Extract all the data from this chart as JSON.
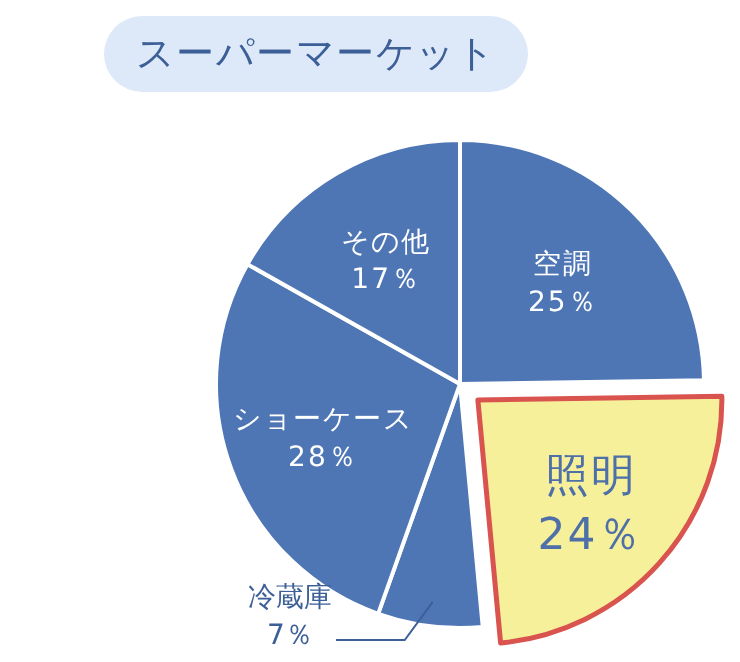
{
  "chart_data": {
    "type": "pie",
    "title": "スーパーマーケット",
    "categories": [
      "空調",
      "照明",
      "冷蔵庫",
      "ショーケース",
      "その他"
    ],
    "values": [
      25,
      24,
      7,
      28,
      17
    ],
    "value_labels": [
      "25％",
      "24％",
      "7％",
      "28％",
      "17％"
    ],
    "colors": [
      "#4e76b5",
      "#f6f09a",
      "#4e76b5",
      "#4e76b5",
      "#4e76b5"
    ]
  }
}
